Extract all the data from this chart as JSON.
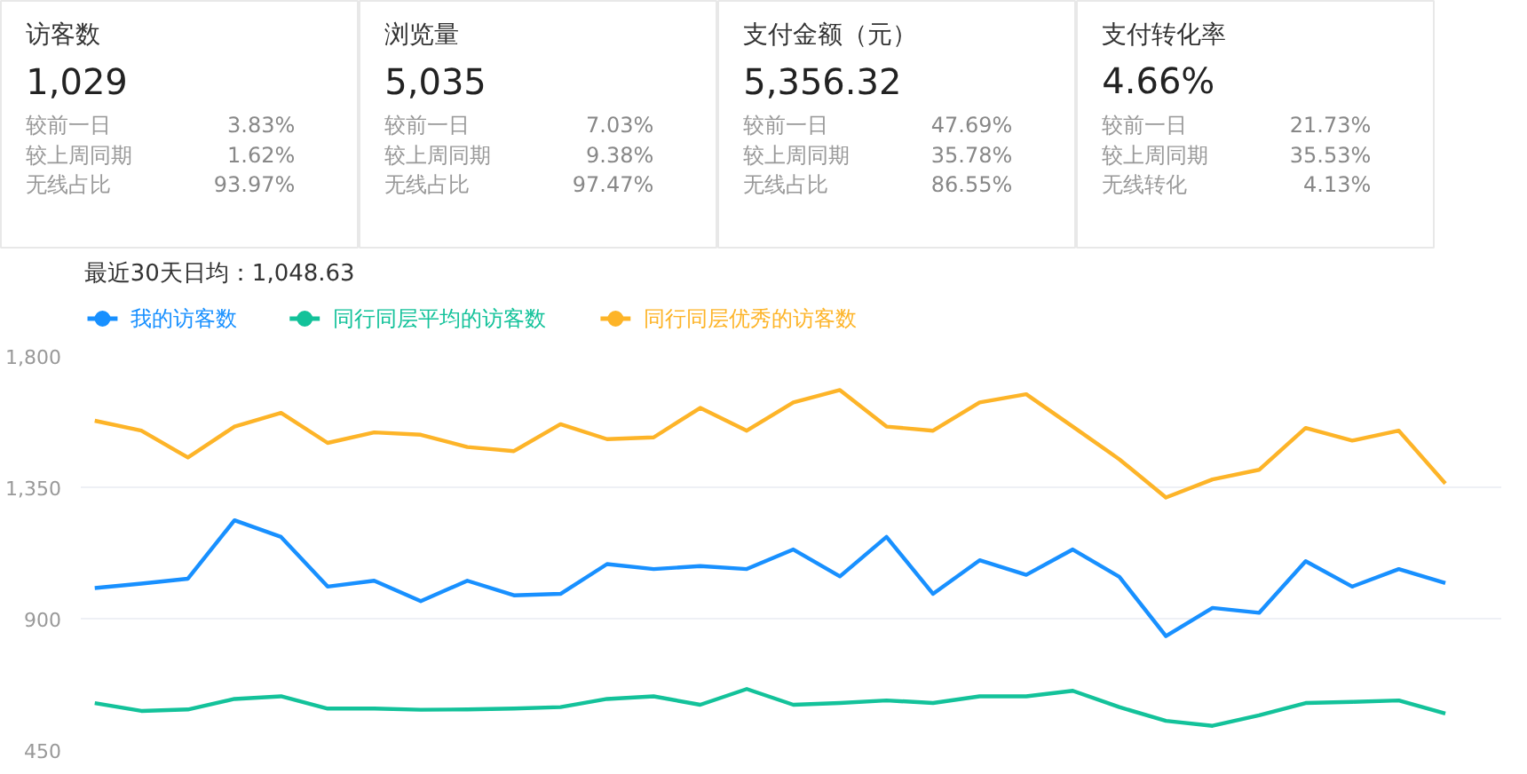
{
  "chart_data": [
    {
      "type": "other",
      "title": "访客数",
      "annotations": [
        "1,029",
        "较前一日",
        "3.83%",
        "较上周同期",
        "1.62%",
        "无线占比",
        "93.97%"
      ]
    },
    {
      "type": "other",
      "title": "浏览量",
      "annotations": [
        "5,035",
        "较前一日",
        "7.03%",
        "较上周同期",
        "9.38%",
        "无线占比",
        "97.47%"
      ]
    },
    {
      "type": "other",
      "title": "支付金额（元）",
      "annotations": [
        "5,356.32",
        "较前一日",
        "47.69%",
        "较上周同期",
        "35.78%",
        "无线占比",
        "86.55%"
      ]
    },
    {
      "type": "other",
      "title": "支付转化率",
      "annotations": [
        "4.66%",
        "较前一日",
        "21.73%",
        "较上周同期",
        "35.53%",
        "无线转化",
        "4.13%"
      ]
    },
    {
      "type": "line",
      "title": "最近30天日均：1,048.63",
      "categories": [
        null,
        null,
        null,
        null,
        null,
        null,
        null,
        null,
        null,
        null,
        null,
        null,
        null,
        null,
        null,
        null,
        null,
        null,
        null,
        null,
        null,
        null,
        null,
        null,
        null,
        null,
        null,
        null,
        null,
        null
      ],
      "series": [
        {
          "name": "我的访客数",
          "color": "#1890ff",
          "values": [
            1005,
            1020,
            1037,
            1237,
            1180,
            1010,
            1030,
            960,
            1030,
            980,
            985,
            1087,
            1070,
            1080,
            1070,
            1137,
            1045,
            1180,
            985,
            1100,
            1050,
            1137,
            1043,
            840,
            937,
            920,
            1097,
            1010,
            1070,
            1022
          ]
        },
        {
          "name": "同行同层平均的访客数",
          "color": "#13c29a",
          "values": [
            611,
            584,
            589,
            625,
            634,
            592,
            592,
            588,
            589,
            592,
            597,
            625,
            634,
            605,
            659,
            605,
            611,
            620,
            611,
            634,
            634,
            653,
            597,
            550,
            533,
            569,
            611,
            615,
            620,
            575
          ]
        },
        {
          "name": "同行同层优秀的访客数",
          "color": "#fdb428",
          "values": [
            1578,
            1544,
            1452,
            1558,
            1605,
            1502,
            1538,
            1530,
            1488,
            1474,
            1566,
            1515,
            1521,
            1622,
            1544,
            1641,
            1683,
            1558,
            1544,
            1641,
            1669,
            1558,
            1446,
            1315,
            1377,
            1410,
            1553,
            1510,
            1544,
            1363
          ]
        }
      ],
      "ylim": [
        450,
        1800
      ],
      "yticks": [
        {
          "value": 450,
          "label": "450"
        },
        {
          "value": 900,
          "label": "900"
        },
        {
          "value": 1350,
          "label": "1,350"
        },
        {
          "value": 1800,
          "label": "1,800"
        }
      ],
      "grid": "y",
      "legend": "top left",
      "marker": "none",
      "line_style": "solid"
    }
  ]
}
